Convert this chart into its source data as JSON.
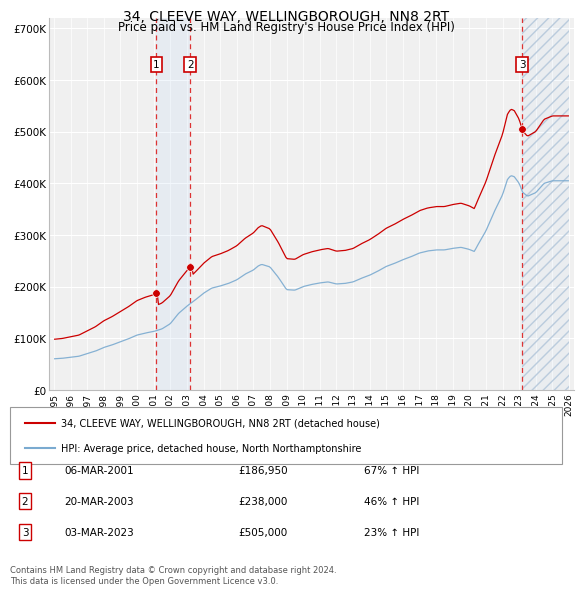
{
  "title": "34, CLEEVE WAY, WELLINGBOROUGH, NN8 2RT",
  "subtitle": "Price paid vs. HM Land Registry's House Price Index (HPI)",
  "ylim": [
    0,
    720000
  ],
  "yticks": [
    0,
    100000,
    200000,
    300000,
    400000,
    500000,
    600000,
    700000
  ],
  "ytick_labels": [
    "£0",
    "£100K",
    "£200K",
    "£300K",
    "£400K",
    "£500K",
    "£600K",
    "£700K"
  ],
  "hpi_color": "#7aaad0",
  "price_color": "#cc0000",
  "vline_color": "#dd3333",
  "shade_color": "#ddeeff",
  "sale_dates_dec": [
    2001.17,
    2003.21,
    2023.17
  ],
  "sale_prices": [
    186950,
    238000,
    505000
  ],
  "sale_labels": [
    "1",
    "2",
    "3"
  ],
  "legend_price_label": "34, CLEEVE WAY, WELLINGBOROUGH, NN8 2RT (detached house)",
  "legend_hpi_label": "HPI: Average price, detached house, North Northamptonshire",
  "table_data": [
    [
      "1",
      "06-MAR-2001",
      "£186,950",
      "67% ↑ HPI"
    ],
    [
      "2",
      "20-MAR-2003",
      "£238,000",
      "46% ↑ HPI"
    ],
    [
      "3",
      "03-MAR-2023",
      "£505,000",
      "23% ↑ HPI"
    ]
  ],
  "footer": "Contains HM Land Registry data © Crown copyright and database right 2024.\nThis data is licensed under the Open Government Licence v3.0.",
  "background_color": "#ffffff",
  "plot_bg_color": "#f0f0f0"
}
